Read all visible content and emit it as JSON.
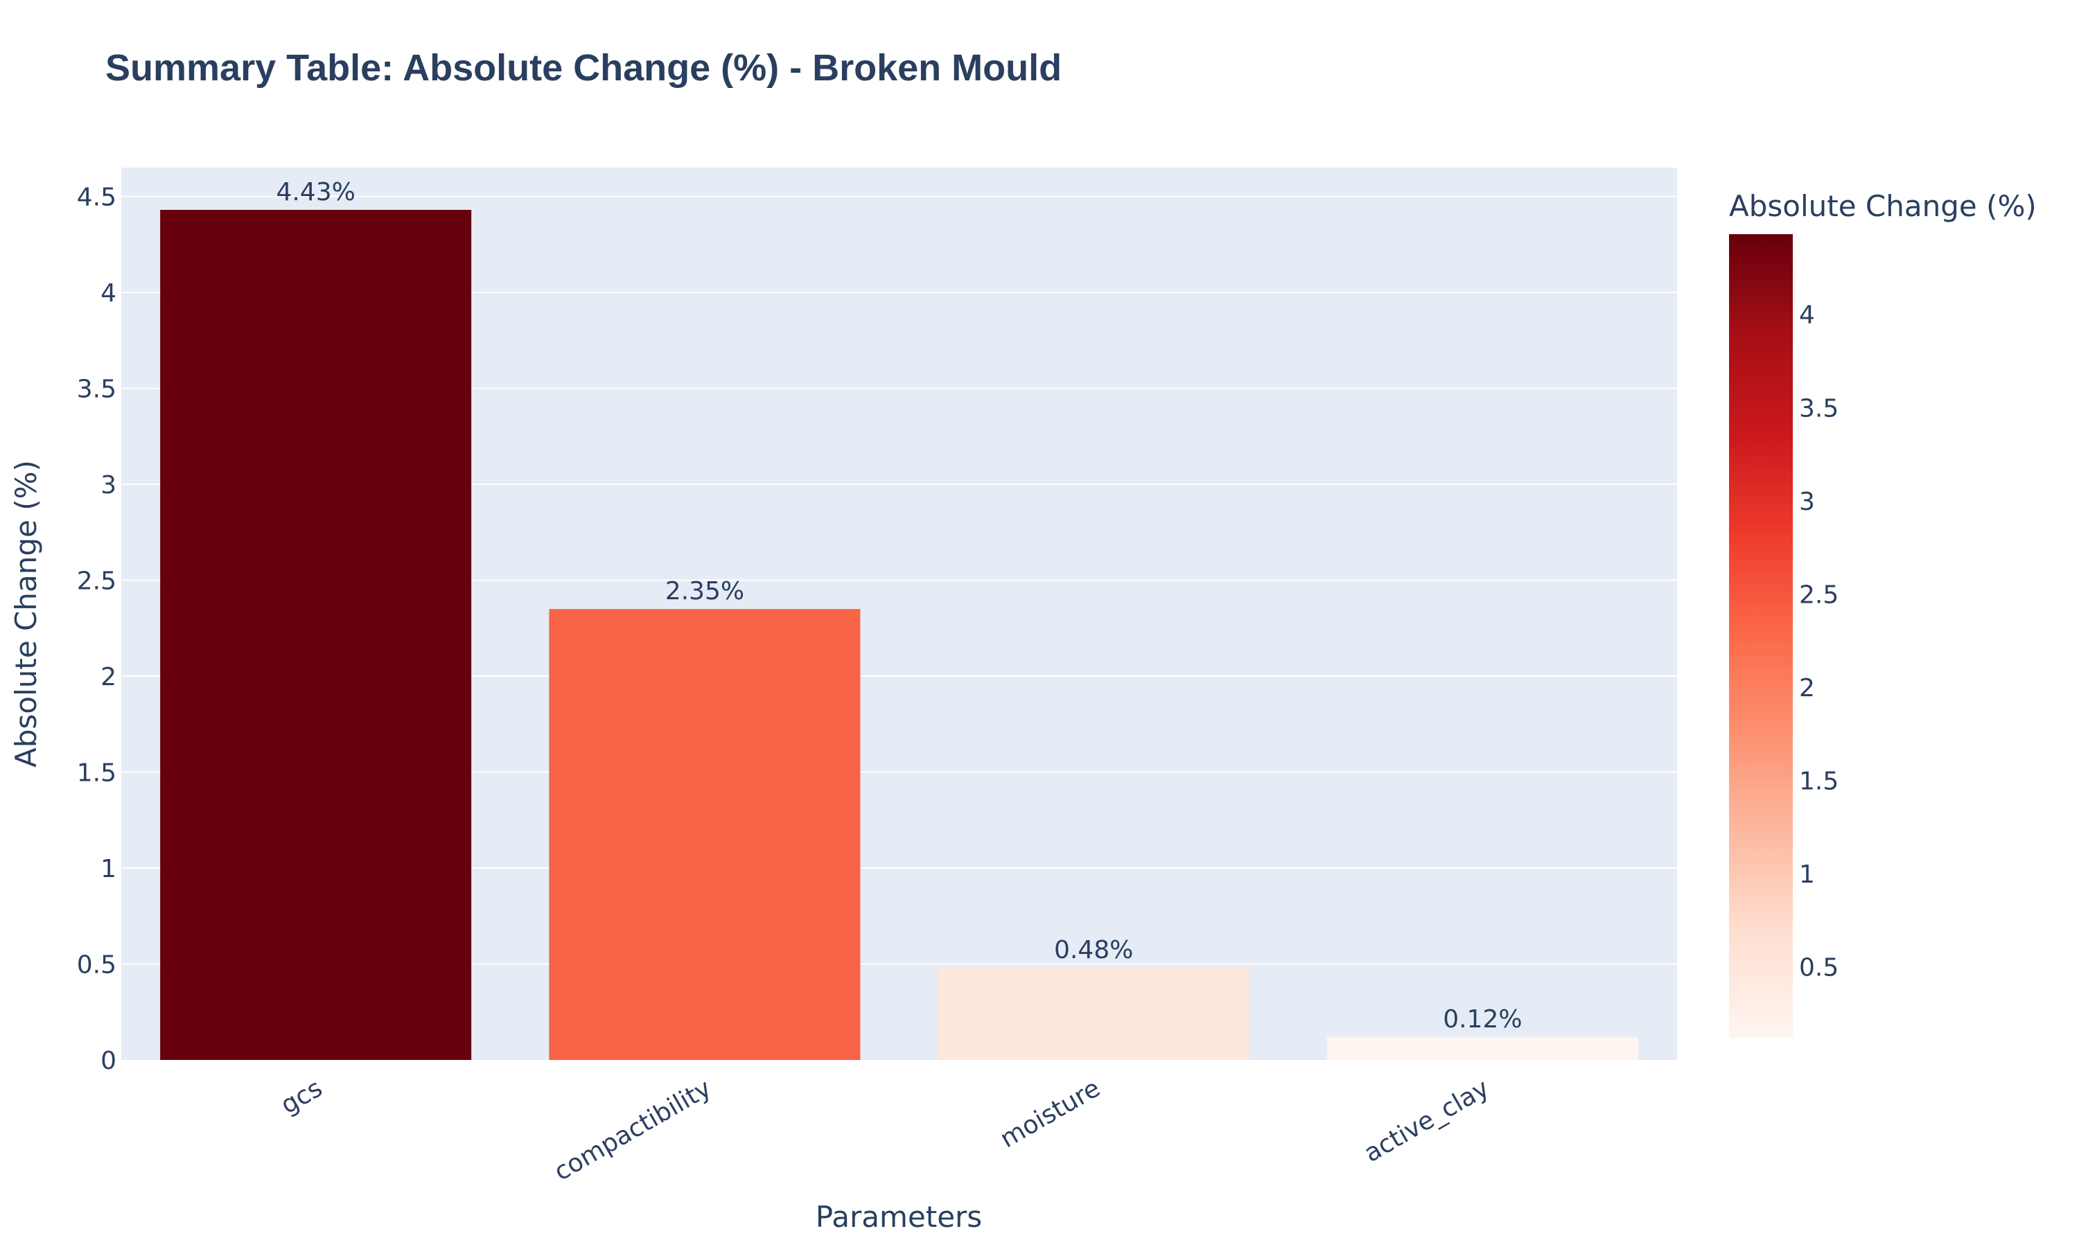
{
  "chart_data": {
    "type": "bar",
    "title": "Summary Table: Absolute Change (%) - Broken Mould",
    "xlabel": "Parameters",
    "ylabel": "Absolute Change (%)",
    "categories": [
      "gcs",
      "compactibility",
      "moisture",
      "active_clay"
    ],
    "values": [
      4.43,
      2.35,
      0.48,
      0.12
    ],
    "value_labels": [
      "4.43%",
      "2.35%",
      "0.48%",
      "0.12%"
    ],
    "ylim": [
      0,
      4.65
    ],
    "yticks": [
      0,
      0.5,
      1,
      1.5,
      2,
      2.5,
      3,
      3.5,
      4,
      4.5
    ],
    "ytick_labels": [
      "0",
      "0.5",
      "1",
      "1.5",
      "2",
      "2.5",
      "3",
      "3.5",
      "4",
      "4.5"
    ],
    "grid": true,
    "colorbar": {
      "title": "Absolute Change (%)",
      "min": 0.12,
      "max": 4.43,
      "ticks": [
        0.5,
        1,
        1.5,
        2,
        2.5,
        3,
        3.5,
        4
      ],
      "tick_labels": [
        "0.5",
        "1",
        "1.5",
        "2",
        "2.5",
        "3",
        "3.5",
        "4"
      ],
      "colorscale": "Reds"
    },
    "colors": {
      "plot_bg": "#e5ecf6",
      "grid": "#ffffff",
      "text": "#2a3f5f"
    }
  }
}
